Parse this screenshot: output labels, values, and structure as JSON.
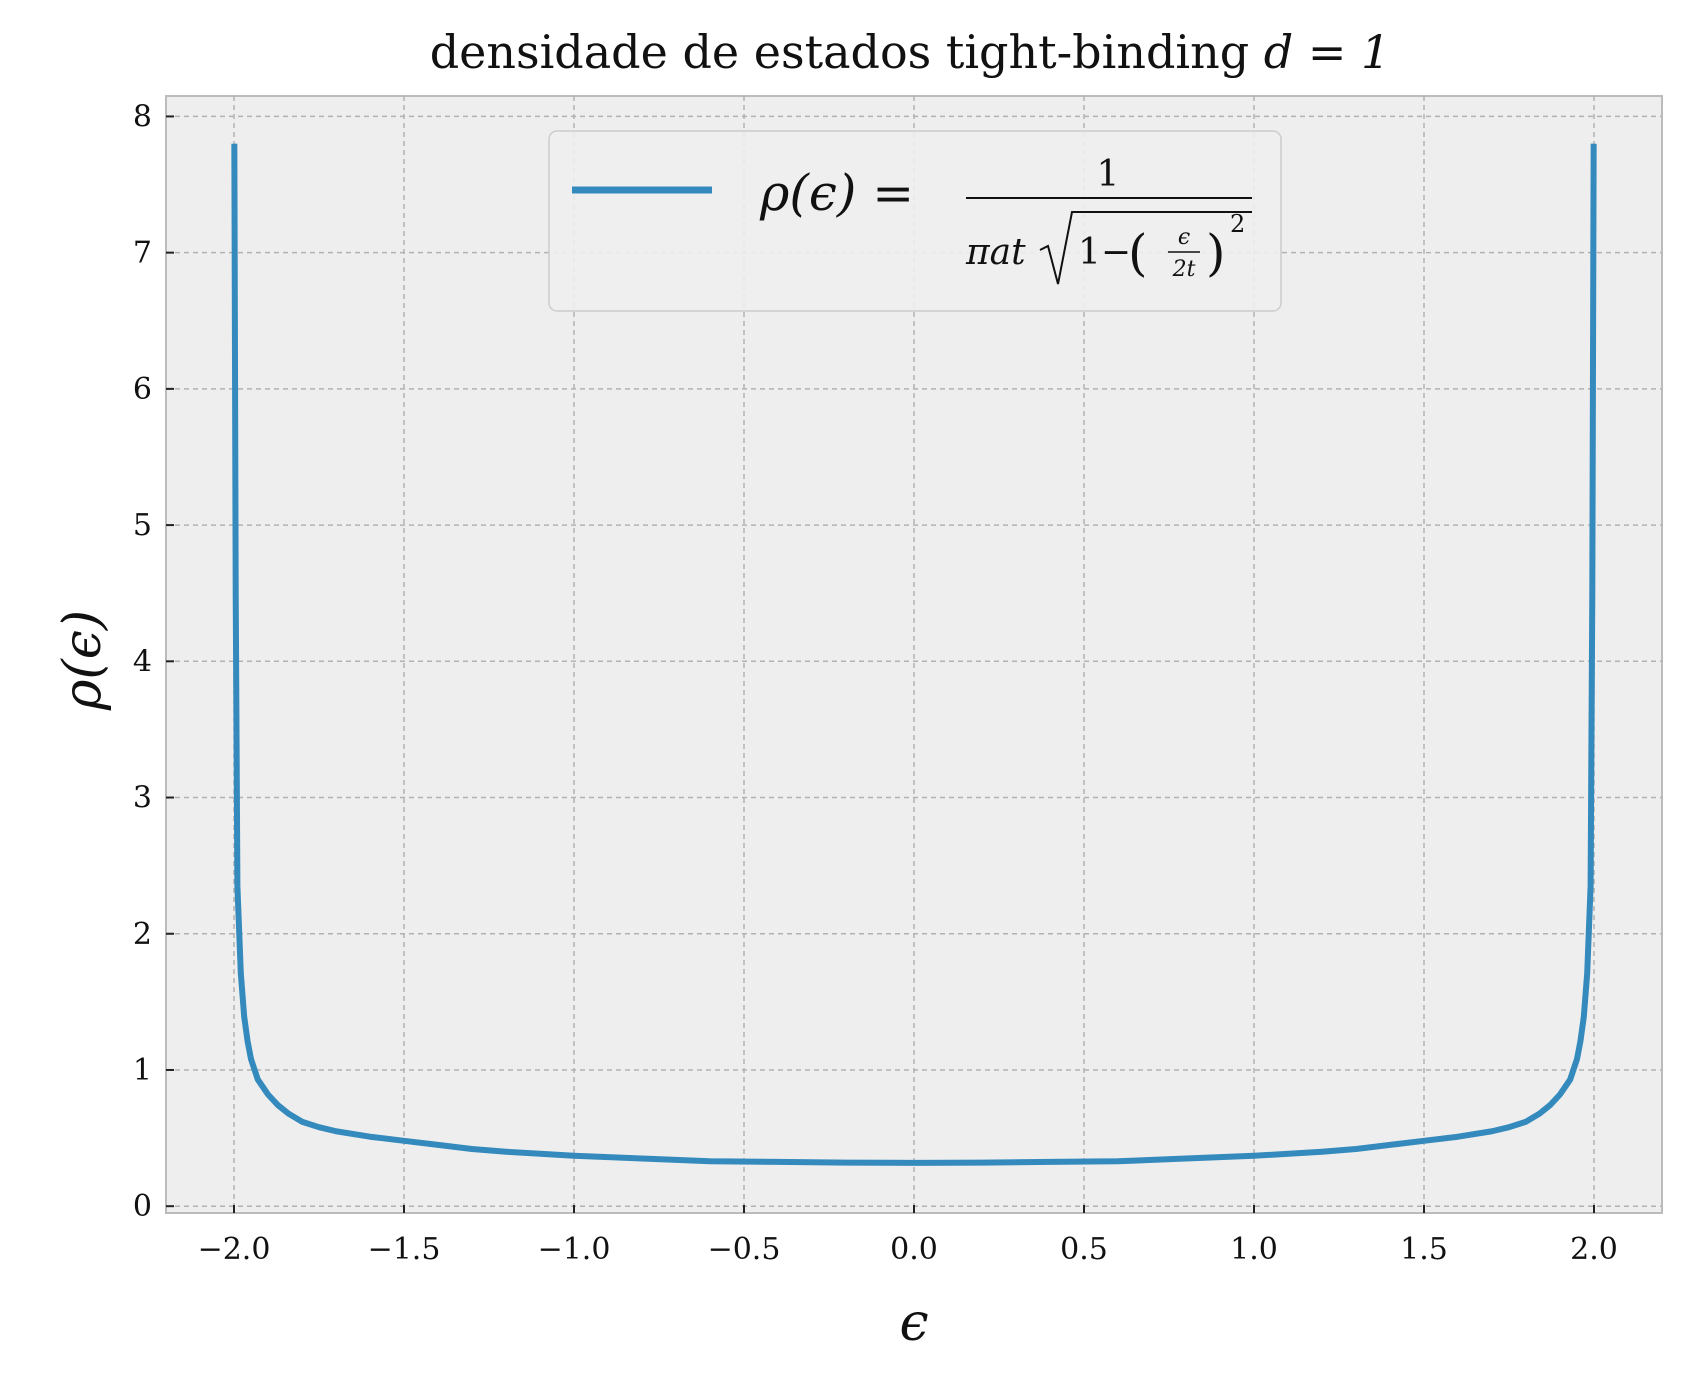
{
  "chart_data": {
    "type": "line",
    "title": "densidade de estados tight-binding d = 1",
    "title_parts": {
      "prefix": "densidade de estados tight-binding ",
      "math": "d = 1"
    },
    "xlabel": "ϵ",
    "ylabel": "ρ(ϵ)",
    "xlim": [
      -2.2,
      2.2
    ],
    "ylim": [
      -0.05,
      8.15
    ],
    "xticks": [
      -2.0,
      -1.5,
      -1.0,
      -0.5,
      0.0,
      0.5,
      1.0,
      1.5,
      2.0
    ],
    "xtick_labels": [
      "−2.0",
      "−1.5",
      "−1.0",
      "−0.5",
      "0.0",
      "0.5",
      "1.0",
      "1.5",
      "2.0"
    ],
    "yticks": [
      0,
      1,
      2,
      3,
      4,
      5,
      6,
      7,
      8
    ],
    "ytick_labels": [
      "0",
      "1",
      "2",
      "3",
      "4",
      "5",
      "6",
      "7",
      "8"
    ],
    "grid": true,
    "legend_position": "upper-center",
    "series": [
      {
        "name": "ρ(ϵ) = 1 / (πat√(1−(ϵ/2t)²))",
        "color": "#348ABD",
        "x": [
          -1.999,
          -1.995,
          -1.99,
          -1.98,
          -1.97,
          -1.96,
          -1.95,
          -1.93,
          -1.9,
          -1.87,
          -1.84,
          -1.8,
          -1.75,
          -1.7,
          -1.6,
          -1.5,
          -1.4,
          -1.3,
          -1.2,
          -1.0,
          -0.8,
          -0.6,
          -0.4,
          -0.2,
          0.0,
          0.2,
          0.4,
          0.6,
          0.8,
          1.0,
          1.2,
          1.3,
          1.4,
          1.5,
          1.6,
          1.7,
          1.75,
          1.8,
          1.84,
          1.87,
          1.9,
          1.93,
          1.95,
          1.96,
          1.97,
          1.98,
          1.99,
          1.995,
          1.999
        ],
        "y": [
          7.8,
          4.5,
          2.35,
          1.71,
          1.39,
          1.21,
          1.08,
          0.93,
          0.82,
          0.74,
          0.68,
          0.62,
          0.58,
          0.55,
          0.51,
          0.48,
          0.45,
          0.42,
          0.4,
          0.37,
          0.35,
          0.33,
          0.325,
          0.32,
          0.318,
          0.32,
          0.325,
          0.33,
          0.35,
          0.37,
          0.4,
          0.42,
          0.45,
          0.48,
          0.51,
          0.55,
          0.58,
          0.62,
          0.68,
          0.74,
          0.82,
          0.93,
          1.08,
          1.21,
          1.39,
          1.71,
          2.35,
          4.5,
          7.8
        ]
      }
    ]
  }
}
